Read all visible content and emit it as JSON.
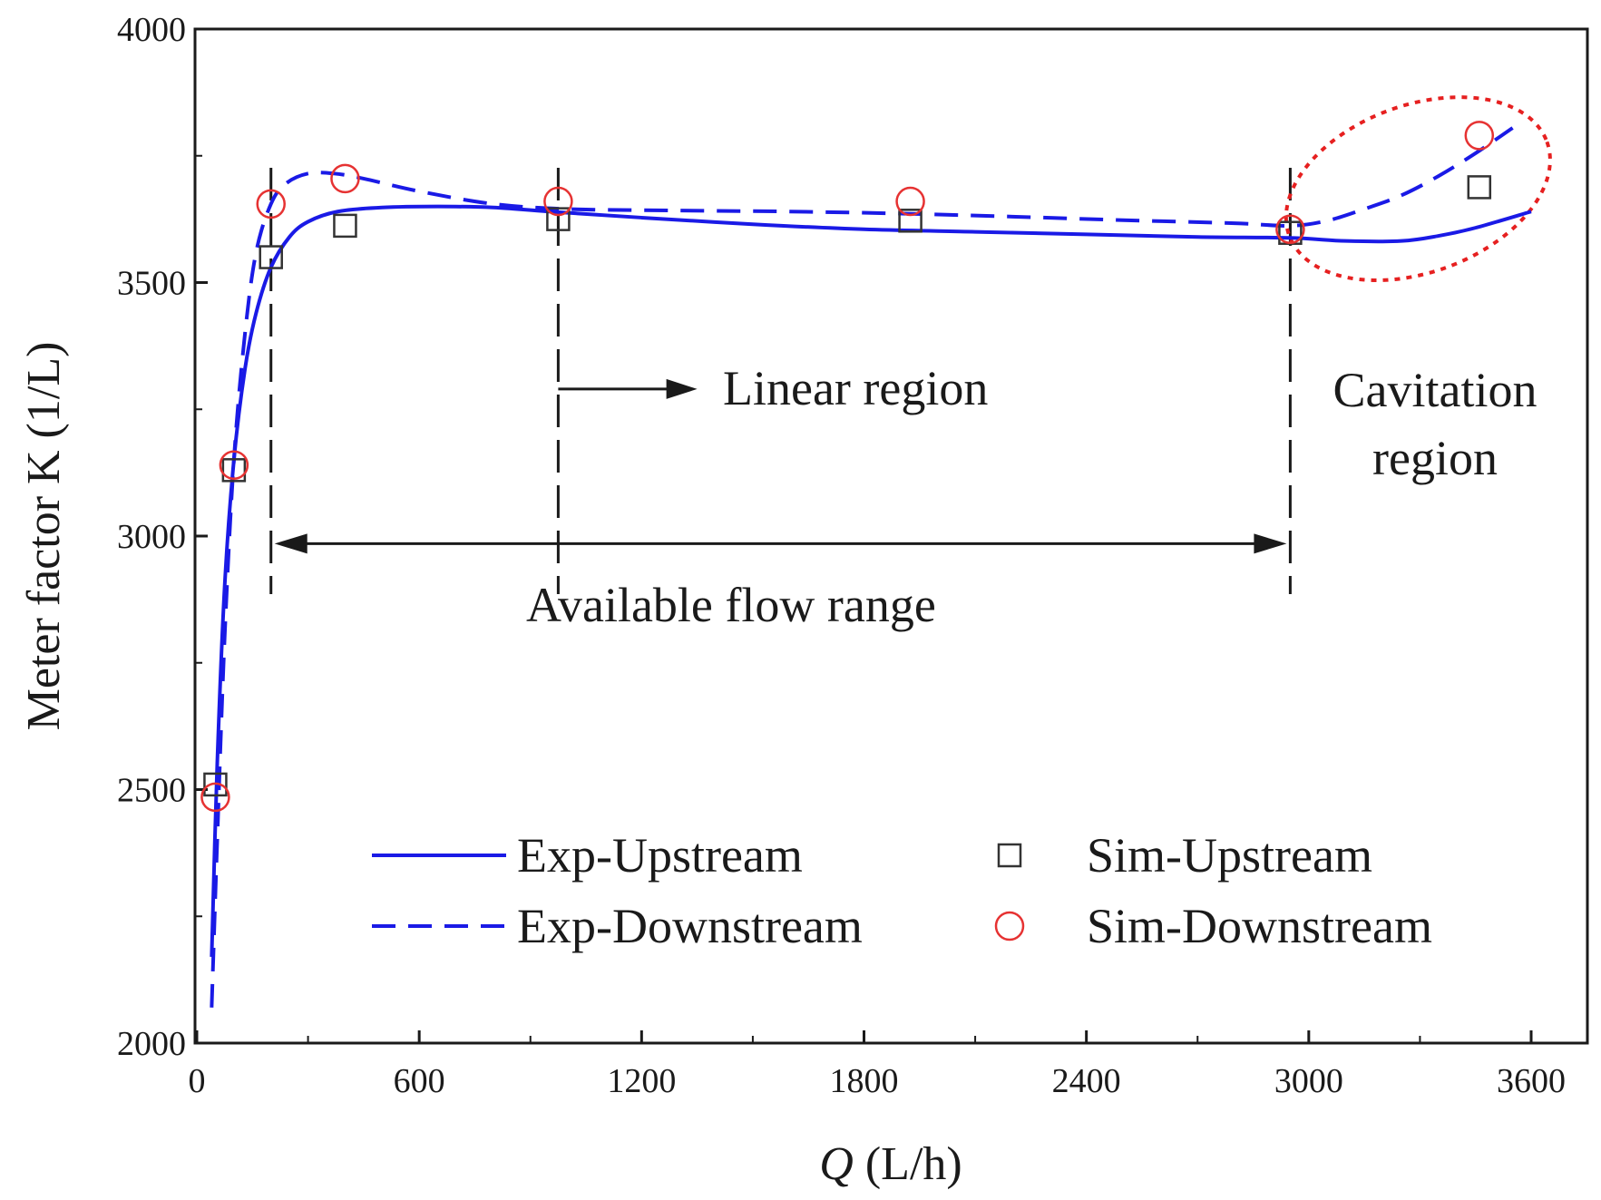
{
  "chart_data": {
    "type": "line",
    "title": "",
    "xlabel_italic": "Q",
    "xlabel_rest": " (L/h)",
    "ylabel": "Meter factor K (1/L)",
    "xlim": [
      0,
      3700
    ],
    "ylim": [
      2000,
      4000
    ],
    "xticks": [
      0,
      600,
      1200,
      1800,
      2400,
      3000,
      3600
    ],
    "yticks": [
      2000,
      2500,
      3000,
      3500,
      4000
    ],
    "colors": {
      "line": "#1a1ae6",
      "circle": "#e63232",
      "square": "#333333",
      "ellipse": "#e62020",
      "axis": "#1a1a1a"
    },
    "series": [
      {
        "name": "Exp-Upstream",
        "style": "solid",
        "x": [
          40,
          55,
          75,
          100,
          130,
          160,
          200,
          250,
          300,
          380,
          500,
          650,
          800,
          950,
          1200,
          1500,
          1800,
          2100,
          2400,
          2700,
          2950,
          3100,
          3250,
          3350,
          3450,
          3600
        ],
        "y": [
          2170,
          2550,
          2900,
          3150,
          3330,
          3440,
          3530,
          3590,
          3620,
          3640,
          3648,
          3650,
          3648,
          3640,
          3628,
          3615,
          3605,
          3600,
          3595,
          3590,
          3588,
          3582,
          3582,
          3592,
          3608,
          3640
        ]
      },
      {
        "name": "Exp-Downstream",
        "style": "dashed",
        "x": [
          40,
          55,
          75,
          100,
          130,
          160,
          200,
          240,
          300,
          370,
          450,
          600,
          800,
          1000,
          1300,
          1600,
          1900,
          2200,
          2500,
          2800,
          2950,
          3050,
          3150,
          3250,
          3350,
          3450,
          3550
        ],
        "y": [
          2070,
          2400,
          2800,
          3150,
          3400,
          3560,
          3655,
          3695,
          3715,
          3715,
          3705,
          3680,
          3655,
          3645,
          3642,
          3640,
          3636,
          3630,
          3623,
          3617,
          3612,
          3622,
          3645,
          3672,
          3710,
          3755,
          3805
        ]
      },
      {
        "name": "Sim-Upstream",
        "marker": "square",
        "x": [
          50,
          100,
          200,
          400,
          975,
          1925,
          2950,
          3460
        ],
        "y": [
          2510,
          3130,
          3550,
          3612,
          3625,
          3622,
          3598,
          3688
        ]
      },
      {
        "name": "Sim-Downstream",
        "marker": "circle",
        "x": [
          50,
          100,
          200,
          400,
          975,
          1925,
          2950,
          3460
        ],
        "y": [
          2485,
          3140,
          3655,
          3705,
          3660,
          3660,
          3605,
          3790
        ]
      }
    ],
    "vlines": [
      200,
      975,
      2950
    ],
    "annotations": {
      "linear_region": "Linear region",
      "available_flow_range": "Available flow range",
      "cavitation_line1": "Cavitation",
      "cavitation_line2": "region"
    },
    "annotation_data": {
      "linear_arrow": {
        "x_from": 975,
        "x_to": 1350,
        "y": 3290
      },
      "range_arrow": {
        "x_from": 200,
        "x_to": 2950,
        "y": 2985
      },
      "cavitation_ellipse": {
        "cx": 3295,
        "cy": 3685,
        "rx": 370,
        "ry": 165,
        "angle_deg": -20
      }
    },
    "legend_position": "lower-center"
  }
}
